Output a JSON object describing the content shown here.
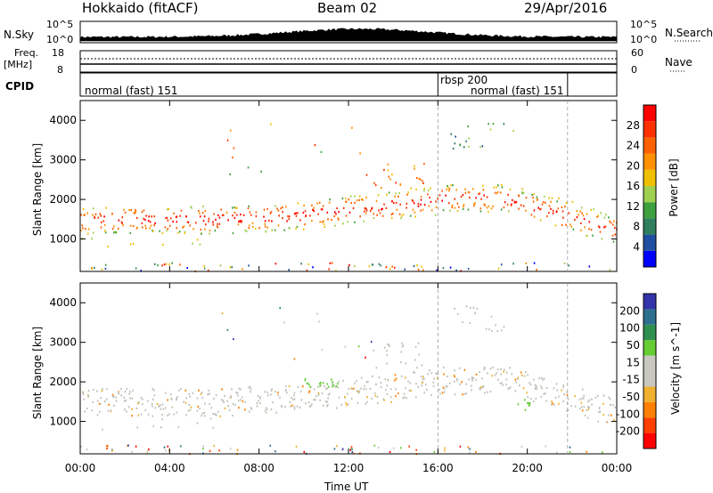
{
  "header": {
    "station": "Hokkaido (fitACF)",
    "beam": "Beam 02",
    "date": "29/Apr/2016"
  },
  "top_panels": {
    "nsky_label": "N.Sky",
    "nsky_ticks": [
      "10^5",
      "10^0"
    ],
    "nsearch_label": "N.Search",
    "nsearch_ticks": [
      "10^5",
      "10^0"
    ],
    "freq_label_1": "Freq.",
    "freq_label_2": "[MHz]",
    "freq_ticks": [
      "18",
      "8"
    ],
    "nave_label": "Nave",
    "nave_ticks": [
      "60",
      "0"
    ],
    "cpid_label": "CPID",
    "cpid_segments": [
      {
        "text": "normal (fast) 151"
      },
      {
        "text": "rbsp 200"
      },
      {
        "text": "normal (fast) 151"
      }
    ]
  },
  "colors": {
    "power_scale": [
      "#0000ff",
      "#1f4fa0",
      "#2f7f5f",
      "#3fa03f",
      "#9fd04f",
      "#f0c000",
      "#ff9000",
      "#ff6000",
      "#ff3000",
      "#ff0000"
    ],
    "velocity_scale": [
      "#3333aa",
      "#2e6e8e",
      "#2f8f4f",
      "#66cc33",
      "#c8c8c0",
      "#c8c8c0",
      "#f0b030",
      "#ff8000",
      "#ff4000",
      "#ff0000"
    ],
    "ground_scatter": "#c0c0b8"
  },
  "chart_data": [
    {
      "type": "heatmap",
      "title": "Power",
      "ylabel": "Slant Range [km]",
      "xlabel": "Time UT",
      "x_ticks": [
        "00:00",
        "04:00",
        "08:00",
        "12:00",
        "16:00",
        "20:00",
        "00:00"
      ],
      "y_ticks": [
        "4000",
        "3000",
        "2000",
        "1000"
      ],
      "xlim": [
        0,
        24
      ],
      "ylim": [
        180,
        4500
      ],
      "colorbar_label": "Power [dB]",
      "colorbar_ticks": [
        "28",
        "24",
        "20",
        "16",
        "12",
        "8",
        "4"
      ],
      "bands": [
        {
          "t": [
            0,
            6
          ],
          "range": [
            1300,
            1700
          ],
          "level": "orange"
        },
        {
          "t": [
            6,
            10
          ],
          "range": [
            1350,
            1800
          ],
          "level": "red"
        },
        {
          "t": [
            10,
            16
          ],
          "range": [
            1500,
            2100
          ],
          "level": "red"
        },
        {
          "t": [
            16,
            19
          ],
          "range": [
            1900,
            2300
          ],
          "level": "red"
        },
        {
          "t": [
            19,
            24
          ],
          "range": [
            1000,
            1800
          ],
          "level": "red"
        },
        {
          "t": [
            13,
            15.5
          ],
          "range": [
            2300,
            3000
          ],
          "level": "orange"
        },
        {
          "t": [
            16.5,
            19
          ],
          "range": [
            3400,
            3900
          ],
          "level": "green"
        },
        {
          "t": [
            0,
            24
          ],
          "range": [
            200,
            400
          ],
          "level": "mixed"
        }
      ]
    },
    {
      "type": "heatmap",
      "title": "Velocity",
      "ylabel": "Slant Range [km]",
      "xlabel": "Time UT",
      "x_ticks": [
        "00:00",
        "04:00",
        "08:00",
        "12:00",
        "16:00",
        "20:00",
        "00:00"
      ],
      "y_ticks": [
        "4000",
        "3000",
        "2000",
        "1000"
      ],
      "xlim": [
        0,
        24
      ],
      "ylim": [
        180,
        4500
      ],
      "colorbar_label": "Velocity [m s^-1]",
      "colorbar_ticks": [
        "200",
        "100",
        "50",
        "15",
        "-15",
        "-50",
        "-100",
        "-200"
      ],
      "bands": [
        {
          "t": [
            0,
            24
          ],
          "range": [
            1100,
            1800
          ],
          "level": "ground"
        },
        {
          "t": [
            10,
            11.5
          ],
          "range": [
            1800,
            2100
          ],
          "level": "green"
        },
        {
          "t": [
            13,
            22
          ],
          "range": [
            1900,
            2400
          ],
          "level": "ground"
        }
      ]
    }
  ],
  "time_axis_label": "Time UT"
}
